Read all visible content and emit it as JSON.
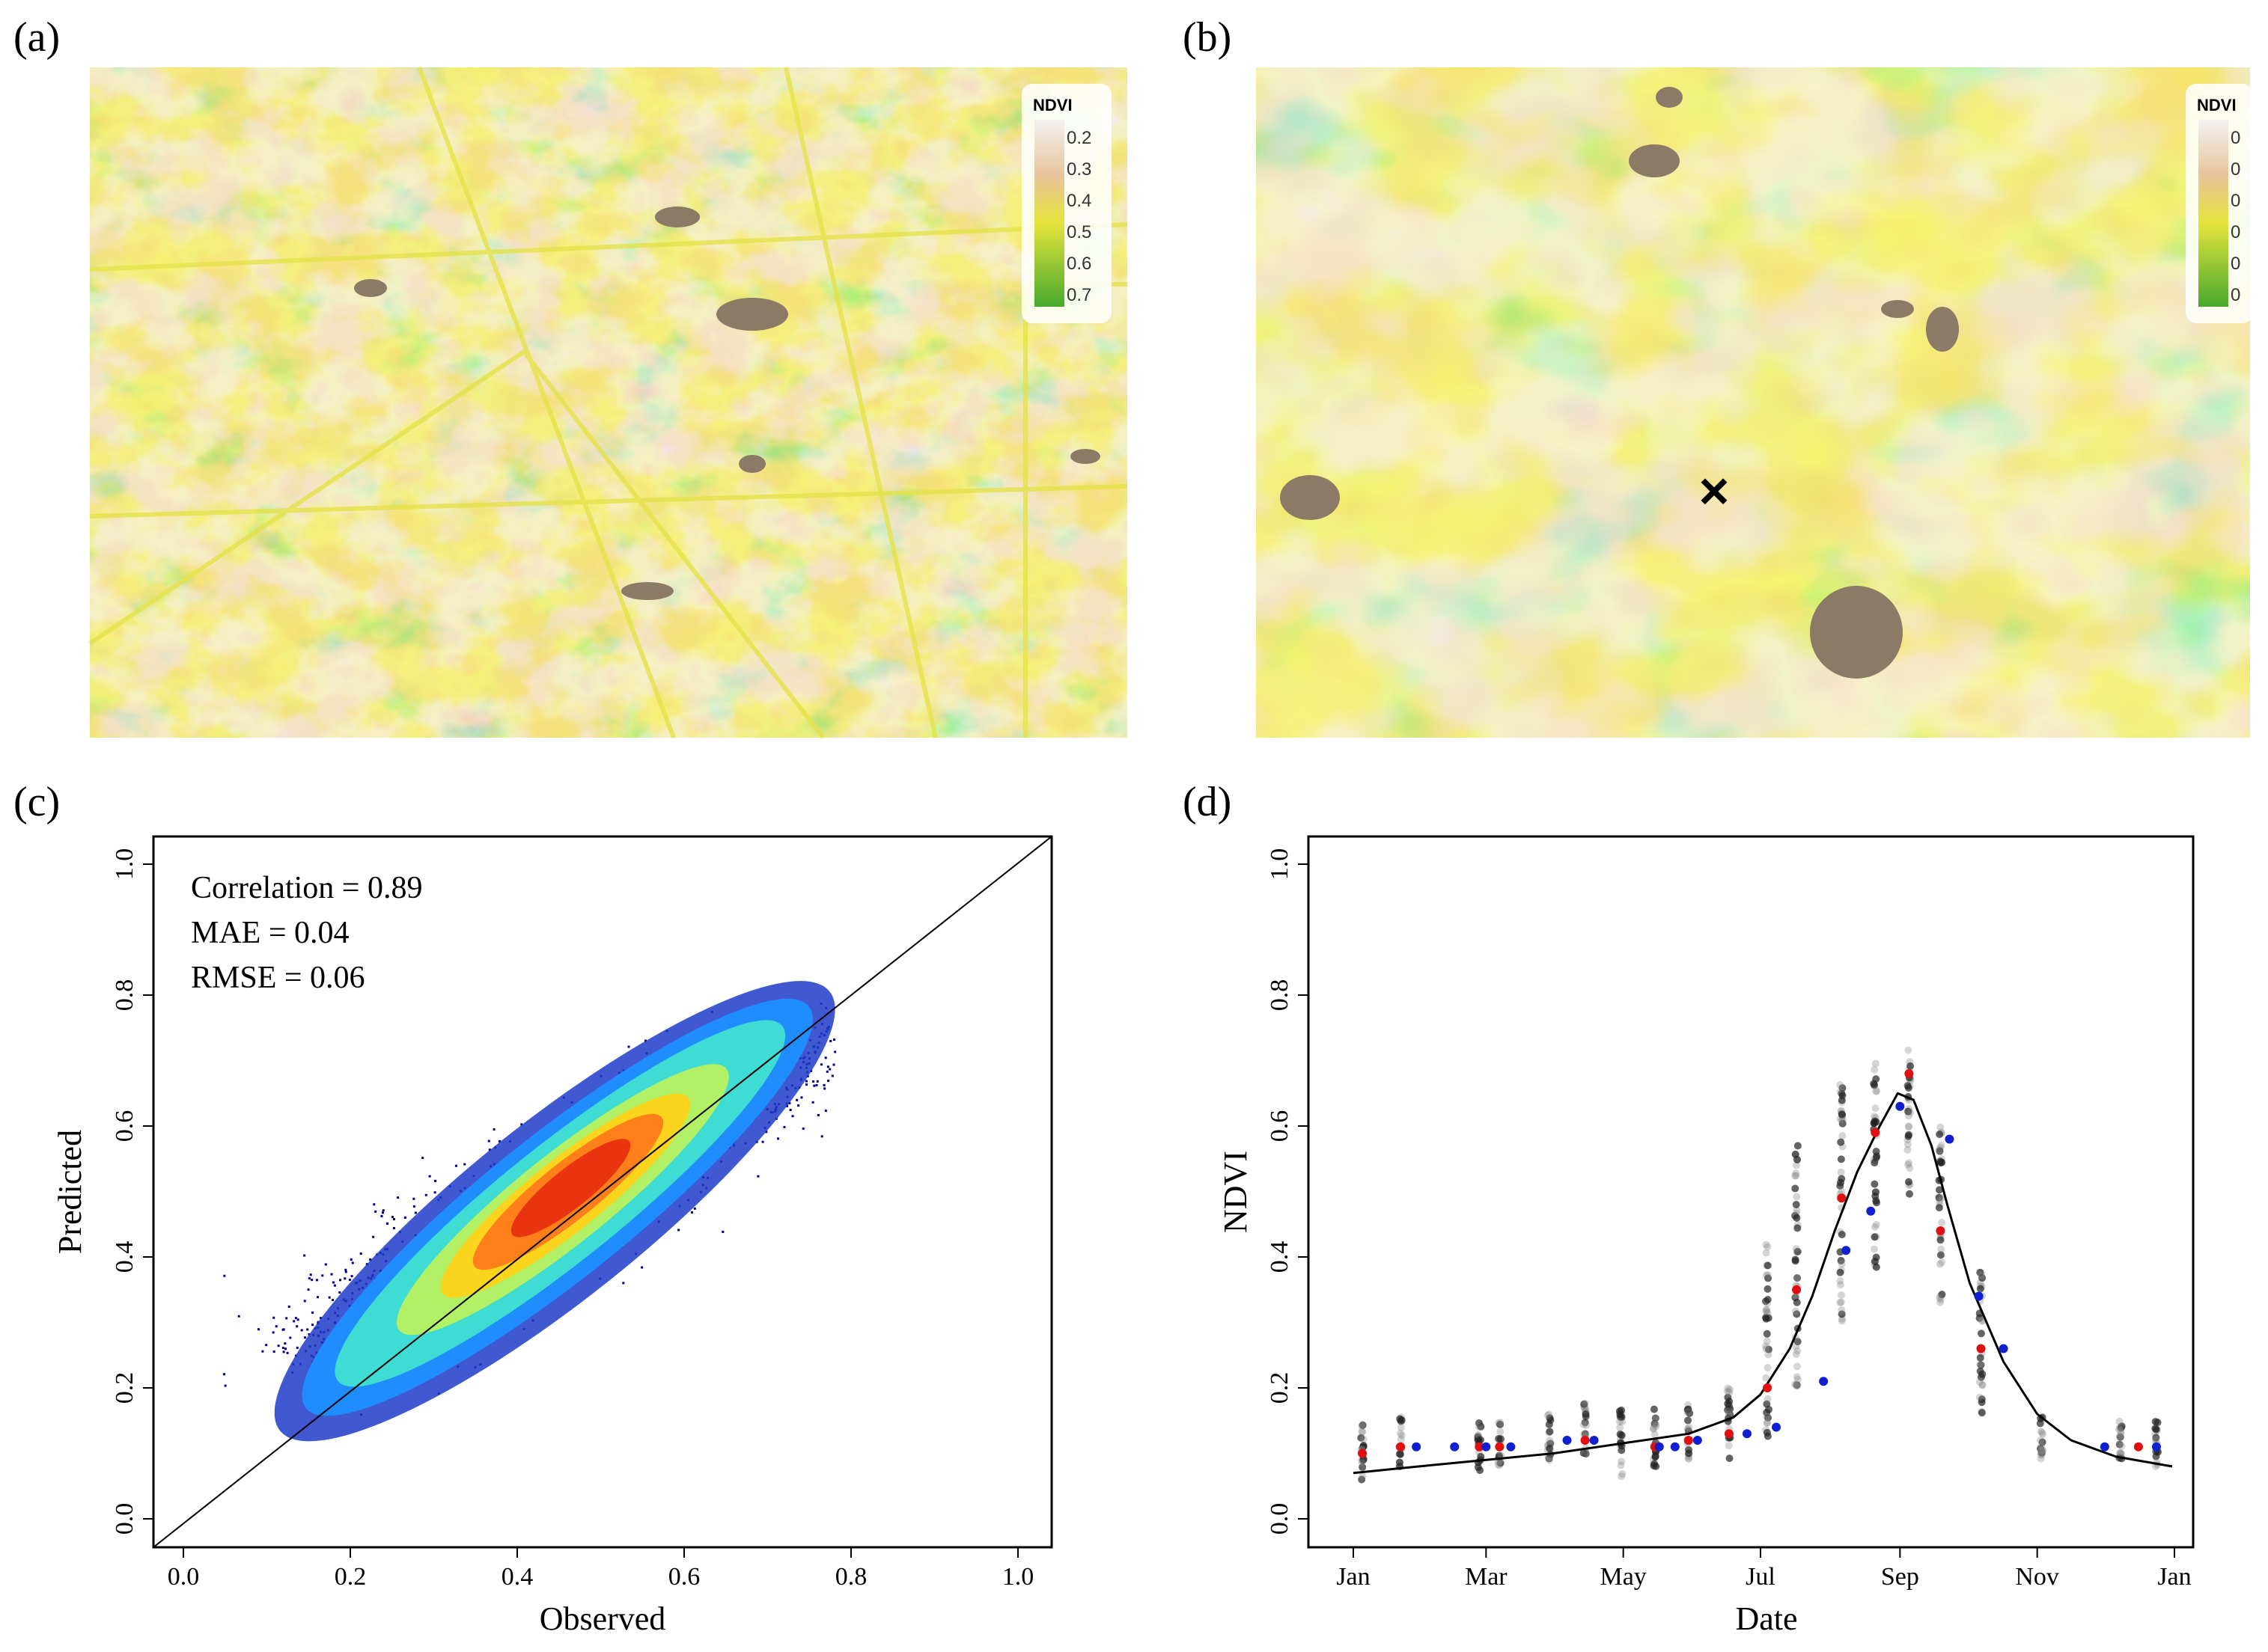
{
  "panels": {
    "a": "(a)",
    "b": "(b)",
    "c": "(c)",
    "d": "(d)"
  },
  "maps": {
    "legend_title": "NDVI",
    "legend_ticks_a": [
      "0.2",
      "0.3",
      "0.4",
      "0.5",
      "0.6",
      "0.7"
    ],
    "legend_ticks_b": [
      "0",
      "0",
      "0",
      "0",
      "0",
      "0"
    ],
    "marker_symbol": "×",
    "colors": {
      "low": "#f2f2f2",
      "tan": "#e8c39a",
      "yellow": "#e6e43c",
      "green": "#47a92d",
      "bare": "#8b7a66"
    }
  },
  "chart_data": [
    {
      "id": "c",
      "type": "scatter",
      "title": "",
      "xlabel": "Observed",
      "ylabel": "Predicted",
      "xlim": [
        0.0,
        1.0
      ],
      "ylim": [
        0.0,
        1.0
      ],
      "xticks": [
        "0.0",
        "0.2",
        "0.4",
        "0.6",
        "0.8",
        "1.0"
      ],
      "yticks": [
        "0.0",
        "0.2",
        "0.4",
        "0.6",
        "0.8",
        "1.0"
      ],
      "stats": [
        "Correlation = 0.89",
        "MAE = 0.04",
        "RMSE = 0.06"
      ],
      "reference_line": "1:1",
      "density_cloud": {
        "x_range": [
          0.02,
          0.78
        ],
        "y_range": [
          0.14,
          0.79
        ],
        "peak": {
          "x": 0.46,
          "y": 0.46
        },
        "colormap": [
          "#00008b",
          "#1e90ff",
          "#40e0d0",
          "#b8f060",
          "#ffd700",
          "#ff4500"
        ]
      }
    },
    {
      "id": "d",
      "type": "scatter",
      "title": "",
      "xlabel": "Date",
      "ylabel": "NDVI",
      "ylim": [
        0.0,
        1.0
      ],
      "xticks": [
        "Jan",
        "Mar",
        "May",
        "Jul",
        "Sep",
        "Nov",
        "Jan"
      ],
      "yticks": [
        "0.0",
        "0.2",
        "0.4",
        "0.6",
        "0.8",
        "1.0"
      ],
      "fitted_curve": {
        "doy": [
          1,
          30,
          60,
          90,
          120,
          150,
          170,
          182,
          195,
          205,
          215,
          225,
          235,
          243,
          250,
          258,
          265,
          275,
          290,
          305,
          320,
          340,
          365
        ],
        "ndvi": [
          0.07,
          0.08,
          0.09,
          0.1,
          0.115,
          0.13,
          0.155,
          0.19,
          0.26,
          0.34,
          0.44,
          0.53,
          0.6,
          0.65,
          0.64,
          0.57,
          0.48,
          0.36,
          0.24,
          0.16,
          0.12,
          0.095,
          0.08
        ]
      },
      "red_points": {
        "doy": [
          5,
          22,
          57,
          66,
          104,
          135,
          150,
          168,
          185,
          198,
          218,
          233,
          248,
          262,
          280,
          350
        ],
        "ndvi": [
          0.1,
          0.11,
          0.11,
          0.11,
          0.12,
          0.11,
          0.12,
          0.13,
          0.2,
          0.35,
          0.49,
          0.59,
          0.68,
          0.44,
          0.26,
          0.11
        ]
      },
      "blue_points": {
        "doy": [
          29,
          46,
          60,
          71,
          96,
          108,
          137,
          144,
          154,
          176,
          189,
          210,
          220,
          231,
          244,
          266,
          279,
          290,
          335,
          358
        ],
        "ndvi": [
          0.11,
          0.11,
          0.11,
          0.11,
          0.12,
          0.12,
          0.11,
          0.11,
          0.12,
          0.13,
          0.14,
          0.21,
          0.41,
          0.47,
          0.63,
          0.58,
          0.34,
          0.26,
          0.11,
          0.11
        ]
      },
      "observation_dates": {
        "doy": [
          5,
          22,
          57,
          66,
          88,
          104,
          120,
          135,
          150,
          168,
          185,
          198,
          218,
          233,
          248,
          262,
          280,
          307,
          342,
          358
        ],
        "ndvi_low": [
          0.06,
          0.08,
          0.07,
          0.08,
          0.08,
          0.09,
          0.06,
          0.08,
          0.08,
          0.09,
          0.12,
          0.2,
          0.3,
          0.38,
          0.48,
          0.33,
          0.16,
          0.09,
          0.08,
          0.08
        ],
        "ndvi_high": [
          0.15,
          0.16,
          0.15,
          0.15,
          0.16,
          0.18,
          0.17,
          0.17,
          0.18,
          0.2,
          0.42,
          0.58,
          0.67,
          0.7,
          0.72,
          0.6,
          0.38,
          0.16,
          0.15,
          0.15
        ]
      }
    }
  ]
}
